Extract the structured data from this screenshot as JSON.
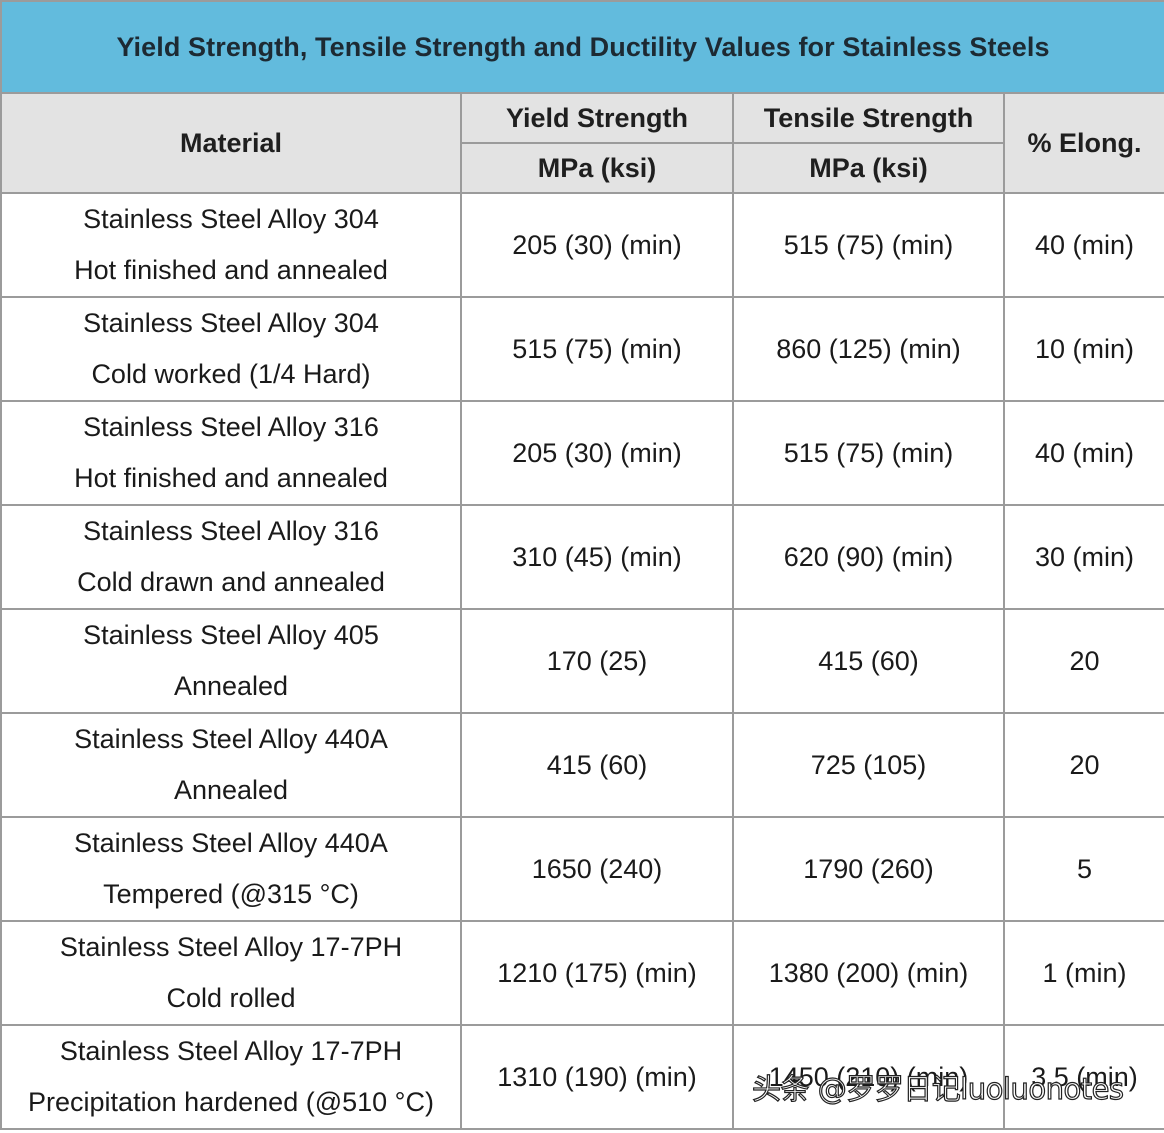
{
  "title": "Yield Strength, Tensile Strength and Ductility Values for Stainless Steels",
  "headers": {
    "material": "Material",
    "yield": "Yield Strength",
    "yield_unit": "MPa (ksi)",
    "tensile": "Tensile Strength",
    "tensile_unit": "MPa (ksi)",
    "elong": "% Elong."
  },
  "rows": [
    {
      "material": "Stainless Steel Alloy 304",
      "condition": "Hot finished and annealed",
      "yield": "205 (30) (min)",
      "tensile": "515 (75) (min)",
      "elong": "40 (min)"
    },
    {
      "material": "Stainless Steel Alloy 304",
      "condition": "Cold worked (1/4 Hard)",
      "yield": "515 (75) (min)",
      "tensile": "860 (125) (min)",
      "elong": "10 (min)"
    },
    {
      "material": "Stainless Steel Alloy 316",
      "condition": "Hot finished and annealed",
      "yield": "205 (30) (min)",
      "tensile": "515 (75) (min)",
      "elong": "40 (min)"
    },
    {
      "material": "Stainless Steel Alloy 316",
      "condition": "Cold drawn and annealed",
      "yield": "310 (45) (min)",
      "tensile": "620 (90) (min)",
      "elong": "30 (min)"
    },
    {
      "material": "Stainless Steel Alloy 405",
      "condition": "Annealed",
      "yield": "170 (25)",
      "tensile": "415 (60)",
      "elong": "20"
    },
    {
      "material": "Stainless Steel Alloy 440A",
      "condition": "Annealed",
      "yield": "415 (60)",
      "tensile": "725 (105)",
      "elong": "20"
    },
    {
      "material": "Stainless Steel Alloy 440A",
      "condition": "Tempered (@315 °C)",
      "yield": "1650 (240)",
      "tensile": "1790 (260)",
      "elong": "5"
    },
    {
      "material": "Stainless Steel Alloy 17-7PH",
      "condition": "Cold rolled",
      "yield": "1210 (175) (min)",
      "tensile": "1380 (200) (min)",
      "elong": "1 (min)"
    },
    {
      "material": "Stainless Steel Alloy 17-7PH",
      "condition": "Precipitation hardened (@510 °C)",
      "yield": "1310 (190) (min)",
      "tensile": "1450 (210) (min)",
      "elong": "3.5 (min)"
    }
  ],
  "watermark": "头条 @罗罗日记luoluonotes"
}
